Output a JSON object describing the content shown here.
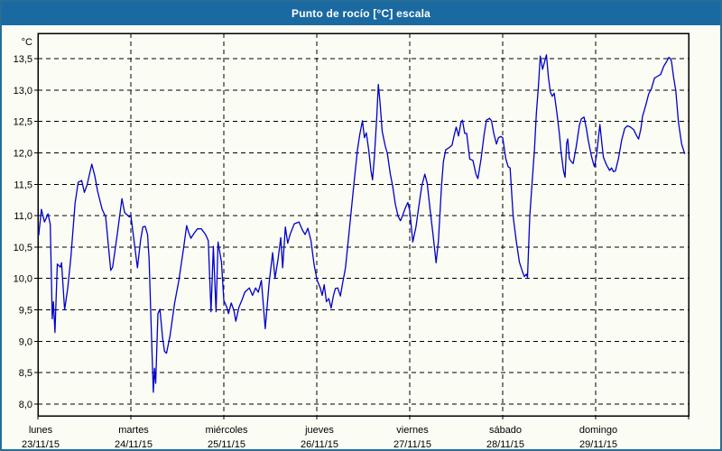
{
  "window": {
    "title": "Punto de rocío [°C] escala"
  },
  "colors": {
    "titlebar_bg": "#1a6aa1",
    "titlebar_text": "#ffffff",
    "page_bg": "#fbfcf3",
    "page_border": "#266e96",
    "plot_border": "#000000",
    "grid": "#000000",
    "axis_text": "#000000",
    "line": "#0000cc"
  },
  "chart_data": {
    "type": "line",
    "title": "Punto de rocío [°C] escala",
    "ylabel": "°C",
    "ylim": [
      8.0,
      13.5
    ],
    "yticks": [
      13.5,
      13.0,
      12.5,
      12.0,
      11.5,
      11.0,
      10.5,
      10.0,
      9.5,
      9.0,
      8.5,
      8.0
    ],
    "decimal_separator": ",",
    "grid": "dashed",
    "legend": "none",
    "x_axis_hours_total": 168,
    "days": [
      {
        "label": "lunes",
        "date": "23/11/15",
        "start_hour": 0
      },
      {
        "label": "martes",
        "date": "24/11/15",
        "start_hour": 24
      },
      {
        "label": "miércoles",
        "date": "25/11/15",
        "start_hour": 48
      },
      {
        "label": "jueves",
        "date": "26/11/15",
        "start_hour": 72
      },
      {
        "label": "viernes",
        "date": "27/11/15",
        "start_hour": 96
      },
      {
        "label": "sábado",
        "date": "28/11/15",
        "start_hour": 120
      },
      {
        "label": "domingo",
        "date": "29/11/15",
        "start_hour": 144
      }
    ],
    "series": [
      {
        "name": "Punto de rocío [°C]",
        "points": [
          [
            0.2,
            10.69
          ],
          [
            0.9,
            11.1
          ],
          [
            1.7,
            10.9
          ],
          [
            2.6,
            11.03
          ],
          [
            3.2,
            10.86
          ],
          [
            3.7,
            9.36
          ],
          [
            4.0,
            9.63
          ],
          [
            4.4,
            9.14
          ],
          [
            5.0,
            10.23
          ],
          [
            5.8,
            10.18
          ],
          [
            6.1,
            10.25
          ],
          [
            6.9,
            9.5
          ],
          [
            7.7,
            9.84
          ],
          [
            8.5,
            10.33
          ],
          [
            9.6,
            11.2
          ],
          [
            10.4,
            11.53
          ],
          [
            11.3,
            11.56
          ],
          [
            12.0,
            11.37
          ],
          [
            12.7,
            11.49
          ],
          [
            13.9,
            11.82
          ],
          [
            14.7,
            11.63
          ],
          [
            15.4,
            11.39
          ],
          [
            16.6,
            11.1
          ],
          [
            17.5,
            10.98
          ],
          [
            18.8,
            10.13
          ],
          [
            19.3,
            10.18
          ],
          [
            20.5,
            10.71
          ],
          [
            21.7,
            11.27
          ],
          [
            22.4,
            11.05
          ],
          [
            23.6,
            10.98
          ],
          [
            24.0,
            11.0
          ],
          [
            25.7,
            10.17
          ],
          [
            26.5,
            10.6
          ],
          [
            27.1,
            10.82
          ],
          [
            27.7,
            10.83
          ],
          [
            28.3,
            10.7
          ],
          [
            28.7,
            10.31
          ],
          [
            29.3,
            9.15
          ],
          [
            29.8,
            8.19
          ],
          [
            30.1,
            8.57
          ],
          [
            30.4,
            8.33
          ],
          [
            31.0,
            9.44
          ],
          [
            31.5,
            9.51
          ],
          [
            32.2,
            9.05
          ],
          [
            32.7,
            8.84
          ],
          [
            33.2,
            8.81
          ],
          [
            34.1,
            9.08
          ],
          [
            35.3,
            9.61
          ],
          [
            36.4,
            9.97
          ],
          [
            37.6,
            10.48
          ],
          [
            38.4,
            10.84
          ],
          [
            38.9,
            10.74
          ],
          [
            39.5,
            10.64
          ],
          [
            40.3,
            10.72
          ],
          [
            41.2,
            10.79
          ],
          [
            42.2,
            10.79
          ],
          [
            43.3,
            10.7
          ],
          [
            44.0,
            10.6
          ],
          [
            44.7,
            9.47
          ],
          [
            45.3,
            10.51
          ],
          [
            46.0,
            9.47
          ],
          [
            46.5,
            10.58
          ],
          [
            47.4,
            10.26
          ],
          [
            48.0,
            9.65
          ],
          [
            48.8,
            9.54
          ],
          [
            49.2,
            9.44
          ],
          [
            49.9,
            9.61
          ],
          [
            50.6,
            9.49
          ],
          [
            51.1,
            9.32
          ],
          [
            51.9,
            9.54
          ],
          [
            52.7,
            9.66
          ],
          [
            53.4,
            9.78
          ],
          [
            54.6,
            9.85
          ],
          [
            55.4,
            9.73
          ],
          [
            56.2,
            9.85
          ],
          [
            56.9,
            9.78
          ],
          [
            57.7,
            9.97
          ],
          [
            58.7,
            9.2
          ],
          [
            59.7,
            9.93
          ],
          [
            60.6,
            10.41
          ],
          [
            61.2,
            10.0
          ],
          [
            62.0,
            10.31
          ],
          [
            62.7,
            10.65
          ],
          [
            63.2,
            10.17
          ],
          [
            63.9,
            10.82
          ],
          [
            64.5,
            10.56
          ],
          [
            65.1,
            10.7
          ],
          [
            66.2,
            10.87
          ],
          [
            67.4,
            10.9
          ],
          [
            68.3,
            10.77
          ],
          [
            69.0,
            10.7
          ],
          [
            69.7,
            10.8
          ],
          [
            70.5,
            10.6
          ],
          [
            71.3,
            10.22
          ],
          [
            72.1,
            9.97
          ],
          [
            72.9,
            9.85
          ],
          [
            73.4,
            9.73
          ],
          [
            73.9,
            9.9
          ],
          [
            74.5,
            9.63
          ],
          [
            75.1,
            9.68
          ],
          [
            75.7,
            9.53
          ],
          [
            76.3,
            9.73
          ],
          [
            76.8,
            9.84
          ],
          [
            77.4,
            9.85
          ],
          [
            78.1,
            9.72
          ],
          [
            78.6,
            9.9
          ],
          [
            79.4,
            10.17
          ],
          [
            80.2,
            10.65
          ],
          [
            80.9,
            11.08
          ],
          [
            81.7,
            11.57
          ],
          [
            82.5,
            12.05
          ],
          [
            83.1,
            12.29
          ],
          [
            83.8,
            12.51
          ],
          [
            84.3,
            12.24
          ],
          [
            84.8,
            12.32
          ],
          [
            85.4,
            12.05
          ],
          [
            86.0,
            11.71
          ],
          [
            86.4,
            11.57
          ],
          [
            86.9,
            11.95
          ],
          [
            87.5,
            12.58
          ],
          [
            87.9,
            13.09
          ],
          [
            88.3,
            12.82
          ],
          [
            88.9,
            12.34
          ],
          [
            89.7,
            12.1
          ],
          [
            90.2,
            12.0
          ],
          [
            91.0,
            11.66
          ],
          [
            91.6,
            11.47
          ],
          [
            92.3,
            11.18
          ],
          [
            93.0,
            10.99
          ],
          [
            93.6,
            10.92
          ],
          [
            94.1,
            10.99
          ],
          [
            94.9,
            11.13
          ],
          [
            95.5,
            11.21
          ],
          [
            96.0,
            11.08
          ],
          [
            96.8,
            10.58
          ],
          [
            97.6,
            10.82
          ],
          [
            98.3,
            11.13
          ],
          [
            99.1,
            11.47
          ],
          [
            99.9,
            11.66
          ],
          [
            100.5,
            11.52
          ],
          [
            101.3,
            11.08
          ],
          [
            102.1,
            10.65
          ],
          [
            102.8,
            10.25
          ],
          [
            103.4,
            10.6
          ],
          [
            104.2,
            11.47
          ],
          [
            104.7,
            11.86
          ],
          [
            105.3,
            12.05
          ],
          [
            106.1,
            12.08
          ],
          [
            106.9,
            12.12
          ],
          [
            107.5,
            12.29
          ],
          [
            108.0,
            12.41
          ],
          [
            108.6,
            12.27
          ],
          [
            109.2,
            12.48
          ],
          [
            109.6,
            12.52
          ],
          [
            110.2,
            12.31
          ],
          [
            110.7,
            12.31
          ],
          [
            111.5,
            11.9
          ],
          [
            112.3,
            11.88
          ],
          [
            113.1,
            11.66
          ],
          [
            113.6,
            11.59
          ],
          [
            114.4,
            11.9
          ],
          [
            115.2,
            12.29
          ],
          [
            115.8,
            12.52
          ],
          [
            116.6,
            12.55
          ],
          [
            117.1,
            12.51
          ],
          [
            117.7,
            12.31
          ],
          [
            118.4,
            12.14
          ],
          [
            118.9,
            12.24
          ],
          [
            119.5,
            12.26
          ],
          [
            120.0,
            12.24
          ],
          [
            120.8,
            11.91
          ],
          [
            121.4,
            11.78
          ],
          [
            121.9,
            11.76
          ],
          [
            122.7,
            10.99
          ],
          [
            123.5,
            10.6
          ],
          [
            124.3,
            10.26
          ],
          [
            125.1,
            10.11
          ],
          [
            125.6,
            10.03
          ],
          [
            126.1,
            10.07
          ],
          [
            126.4,
            10.02
          ],
          [
            127.0,
            10.99
          ],
          [
            127.8,
            11.71
          ],
          [
            128.2,
            12.05
          ],
          [
            128.7,
            12.63
          ],
          [
            129.2,
            13.04
          ],
          [
            129.7,
            13.54
          ],
          [
            130.3,
            13.33
          ],
          [
            131.3,
            13.56
          ],
          [
            131.8,
            13.21
          ],
          [
            132.3,
            12.97
          ],
          [
            132.8,
            12.9
          ],
          [
            133.3,
            12.95
          ],
          [
            134.0,
            12.63
          ],
          [
            134.6,
            12.32
          ],
          [
            135.1,
            12.0
          ],
          [
            135.7,
            11.71
          ],
          [
            136.1,
            11.61
          ],
          [
            136.5,
            12.15
          ],
          [
            136.8,
            12.22
          ],
          [
            137.2,
            11.91
          ],
          [
            137.7,
            11.86
          ],
          [
            138.2,
            11.83
          ],
          [
            139.0,
            12.1
          ],
          [
            139.8,
            12.44
          ],
          [
            140.3,
            12.54
          ],
          [
            141.0,
            12.57
          ],
          [
            141.6,
            12.39
          ],
          [
            142.1,
            12.2
          ],
          [
            142.9,
            11.95
          ],
          [
            143.5,
            11.81
          ],
          [
            143.7,
            11.78
          ],
          [
            144.2,
            11.95
          ],
          [
            145.1,
            12.45
          ],
          [
            145.6,
            12.15
          ],
          [
            146.0,
            11.93
          ],
          [
            146.8,
            11.81
          ],
          [
            147.6,
            11.72
          ],
          [
            148.1,
            11.76
          ],
          [
            148.6,
            11.7
          ],
          [
            149.1,
            11.71
          ],
          [
            149.9,
            11.91
          ],
          [
            150.7,
            12.2
          ],
          [
            151.5,
            12.39
          ],
          [
            152.2,
            12.43
          ],
          [
            153.0,
            12.41
          ],
          [
            153.8,
            12.37
          ],
          [
            154.6,
            12.27
          ],
          [
            155.1,
            12.22
          ],
          [
            155.7,
            12.39
          ],
          [
            156.1,
            12.58
          ],
          [
            156.9,
            12.75
          ],
          [
            157.7,
            12.94
          ],
          [
            158.4,
            13.02
          ],
          [
            159.2,
            13.19
          ],
          [
            160.0,
            13.22
          ],
          [
            160.8,
            13.25
          ],
          [
            161.6,
            13.38
          ],
          [
            162.3,
            13.45
          ],
          [
            162.9,
            13.52
          ],
          [
            163.3,
            13.5
          ],
          [
            163.6,
            13.45
          ],
          [
            164.1,
            13.21
          ],
          [
            164.7,
            12.99
          ],
          [
            165.4,
            12.48
          ],
          [
            166.2,
            12.14
          ],
          [
            166.8,
            12.02
          ],
          [
            167.0,
            11.99
          ]
        ]
      }
    ]
  }
}
